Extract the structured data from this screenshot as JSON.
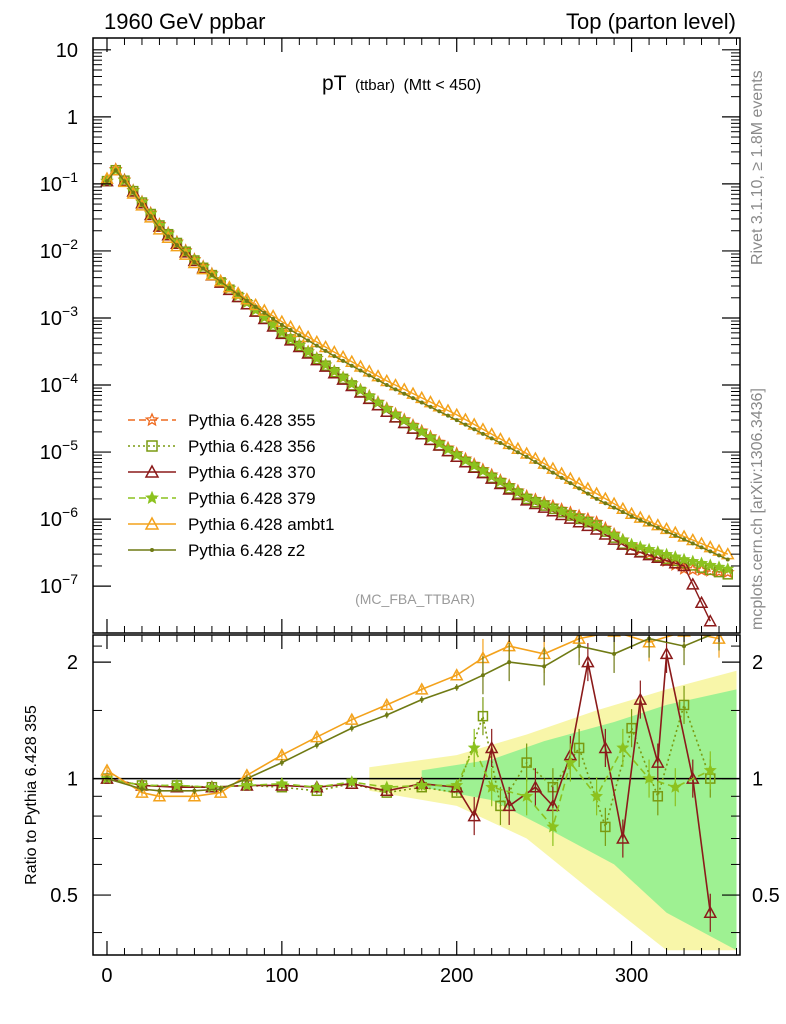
{
  "header": {
    "left": "1960 GeV ppbar",
    "right": "Top (parton level)"
  },
  "side_labels": {
    "rivet": "Rivet 3.1.10, ≥ 1.8M events",
    "mcplots": "mcplots.cern.ch [arXiv:1306.3436]"
  },
  "colors": {
    "c355": "#ee6a1f",
    "c356": "#7a9a10",
    "c370": "#8b1a1a",
    "c379": "#8cc21f",
    "ambt1": "#f3a21c",
    "z2": "#6f7a14",
    "band_yellow": "#f7f59a",
    "band_green": "#8ef08e"
  },
  "chart_data": [
    {
      "type": "line",
      "panel": "main",
      "title_main": "pT",
      "title_sub": "(ttbar)",
      "title_cut": "(Mtt < 450)",
      "analysis": "(MC_FBA_TTBAR)",
      "yscale": "log",
      "xlim": [
        -8,
        362
      ],
      "ylim": [
        2e-08,
        15
      ],
      "y_tick_labels": [
        {
          "label": "10",
          "value": 10
        },
        {
          "label": "1",
          "value": 1
        },
        {
          "base": "10",
          "exp": "−1",
          "value": 0.1
        },
        {
          "base": "10",
          "exp": "−2",
          "value": 0.01
        },
        {
          "base": "10",
          "exp": "−3",
          "value": 0.001
        },
        {
          "base": "10",
          "exp": "−4",
          "value": 0.0001
        },
        {
          "base": "10",
          "exp": "−5",
          "value": 1e-05
        },
        {
          "base": "10",
          "exp": "−6",
          "value": 1e-06
        },
        {
          "base": "10",
          "exp": "−7",
          "value": 1e-07
        }
      ],
      "series": [
        {
          "name": "Pythia 6.428 355",
          "style": "dashed",
          "marker": "star-open",
          "color_key": "c355",
          "points": [
            [
              0,
              0.11
            ],
            [
              5,
              0.165
            ],
            [
              15,
              0.08
            ],
            [
              30,
              0.025
            ],
            [
              50,
              0.0075
            ],
            [
              80,
              0.0017
            ],
            [
              100,
              0.00062
            ],
            [
              130,
              0.00016
            ],
            [
              160,
              4.5e-05
            ],
            [
              200,
              9.5e-06
            ],
            [
              240,
              2.2e-06
            ],
            [
              280,
              9e-07
            ],
            [
              300,
              4e-07
            ],
            [
              330,
              1.8e-07
            ],
            [
              355,
              1.6e-07
            ]
          ]
        },
        {
          "name": "Pythia 6.428 356",
          "style": "dotted",
          "marker": "square-open",
          "color_key": "c356",
          "points": [
            [
              0,
              0.11
            ],
            [
              5,
              0.16
            ],
            [
              15,
              0.078
            ],
            [
              30,
              0.024
            ],
            [
              50,
              0.0072
            ],
            [
              80,
              0.0016
            ],
            [
              100,
              0.0006
            ],
            [
              130,
              0.000155
            ],
            [
              160,
              4e-05
            ],
            [
              200,
              8.5e-06
            ],
            [
              240,
              2e-06
            ],
            [
              280,
              8e-07
            ],
            [
              300,
              3.5e-07
            ],
            [
              330,
              2.2e-07
            ],
            [
              355,
              1.5e-07
            ]
          ]
        },
        {
          "name": "Pythia 6.428 370",
          "style": "solid",
          "marker": "triangle-open",
          "color_key": "c370",
          "points": [
            [
              0,
              0.11
            ],
            [
              5,
              0.16
            ],
            [
              15,
              0.077
            ],
            [
              30,
              0.023
            ],
            [
              50,
              0.0071
            ],
            [
              80,
              0.0016
            ],
            [
              100,
              0.00058
            ],
            [
              130,
              0.00015
            ],
            [
              160,
              4e-05
            ],
            [
              200,
              8.5e-06
            ],
            [
              240,
              1.9e-06
            ],
            [
              280,
              7e-07
            ],
            [
              300,
              3.5e-07
            ],
            [
              330,
              2e-07
            ],
            [
              345,
              3e-08
            ]
          ]
        },
        {
          "name": "Pythia 6.428 379",
          "style": "dashed",
          "marker": "star-filled",
          "color_key": "c379",
          "points": [
            [
              0,
              0.11
            ],
            [
              5,
              0.16
            ],
            [
              15,
              0.079
            ],
            [
              30,
              0.024
            ],
            [
              50,
              0.0073
            ],
            [
              80,
              0.0017
            ],
            [
              100,
              0.00061
            ],
            [
              130,
              0.00016
            ],
            [
              160,
              4.4e-05
            ],
            [
              200,
              9e-06
            ],
            [
              240,
              2.1e-06
            ],
            [
              280,
              8e-07
            ],
            [
              300,
              4.2e-07
            ],
            [
              330,
              2.5e-07
            ],
            [
              355,
              1.8e-07
            ]
          ]
        },
        {
          "name": "Pythia 6.428 ambt1",
          "style": "solid",
          "marker": "triangle-open",
          "color_key": "ambt1",
          "points": [
            [
              0,
              0.12
            ],
            [
              5,
              0.16
            ],
            [
              15,
              0.072
            ],
            [
              30,
              0.021
            ],
            [
              50,
              0.0066
            ],
            [
              80,
              0.0019
            ],
            [
              100,
              0.00088
            ],
            [
              130,
              0.00031
            ],
            [
              160,
              0.000115
            ],
            [
              200,
              3.6e-05
            ],
            [
              240,
              9.5e-06
            ],
            [
              280,
              2.4e-06
            ],
            [
              300,
              1.2e-06
            ],
            [
              330,
              5.5e-07
            ],
            [
              355,
              3e-07
            ]
          ]
        },
        {
          "name": "Pythia 6.428 z2",
          "style": "solid",
          "marker": "dot",
          "color_key": "z2",
          "points": [
            [
              0,
              0.11
            ],
            [
              5,
              0.16
            ],
            [
              15,
              0.074
            ],
            [
              30,
              0.022
            ],
            [
              50,
              0.0068
            ],
            [
              80,
              0.0018
            ],
            [
              100,
              0.00079
            ],
            [
              130,
              0.00027
            ],
            [
              160,
              0.0001
            ],
            [
              200,
              3e-05
            ],
            [
              240,
              8.5e-06
            ],
            [
              280,
              2e-06
            ],
            [
              300,
              1.1e-06
            ],
            [
              330,
              5e-07
            ],
            [
              355,
              2.5e-07
            ]
          ]
        }
      ]
    },
    {
      "type": "line",
      "panel": "ratio",
      "ylabel": "Ratio to Pythia 6.428 355",
      "yscale": "log",
      "xlim": [
        -8,
        362
      ],
      "ylim": [
        0.35,
        2.35
      ],
      "x_ticks": [
        0,
        100,
        200,
        300
      ],
      "y_ticks": [
        0.5,
        1,
        2
      ],
      "reference": 1,
      "bands": [
        {
          "color_key": "band_yellow",
          "points": [
            [
              150,
              0.07
            ],
            [
              200,
              0.15
            ],
            [
              240,
              0.3
            ],
            [
              280,
              0.5
            ],
            [
              320,
              0.7
            ],
            [
              360,
              0.9
            ]
          ]
        },
        {
          "color_key": "band_green",
          "points": [
            [
              180,
              0.05
            ],
            [
              220,
              0.12
            ],
            [
              250,
              0.25
            ],
            [
              290,
              0.4
            ],
            [
              320,
              0.55
            ],
            [
              360,
              0.7
            ]
          ]
        }
      ],
      "series": [
        {
          "name": "Pythia 6.428 356",
          "style": "dotted",
          "marker": "square-open",
          "color_key": "c356",
          "points": [
            [
              0,
              1.0
            ],
            [
              20,
              0.96
            ],
            [
              40,
              0.96
            ],
            [
              60,
              0.95
            ],
            [
              80,
              0.96
            ],
            [
              100,
              0.95
            ],
            [
              120,
              0.93
            ],
            [
              140,
              0.97
            ],
            [
              160,
              0.92
            ],
            [
              180,
              0.95
            ],
            [
              200,
              0.92
            ],
            [
              215,
              1.45
            ],
            [
              225,
              0.85
            ],
            [
              240,
              1.1
            ],
            [
              255,
              0.95
            ],
            [
              270,
              1.2
            ],
            [
              285,
              0.75
            ],
            [
              300,
              1.35
            ],
            [
              315,
              0.9
            ],
            [
              330,
              1.55
            ],
            [
              345,
              1.0
            ]
          ]
        },
        {
          "name": "Pythia 6.428 370",
          "style": "solid",
          "marker": "triangle-open",
          "color_key": "c370",
          "points": [
            [
              0,
              1.0
            ],
            [
              20,
              0.96
            ],
            [
              40,
              0.95
            ],
            [
              60,
              0.95
            ],
            [
              80,
              0.96
            ],
            [
              100,
              0.96
            ],
            [
              120,
              0.95
            ],
            [
              140,
              0.97
            ],
            [
              160,
              0.93
            ],
            [
              180,
              0.97
            ],
            [
              200,
              0.95
            ],
            [
              210,
              0.8
            ],
            [
              220,
              1.2
            ],
            [
              230,
              0.85
            ],
            [
              245,
              0.95
            ],
            [
              255,
              0.85
            ],
            [
              265,
              1.15
            ],
            [
              275,
              2.0
            ],
            [
              285,
              1.2
            ],
            [
              295,
              0.7
            ],
            [
              305,
              1.6
            ],
            [
              315,
              1.1
            ],
            [
              320,
              2.1
            ],
            [
              335,
              1.0
            ],
            [
              345,
              0.45
            ]
          ]
        },
        {
          "name": "Pythia 6.428 379",
          "style": "dashed",
          "marker": "star-filled",
          "color_key": "c379",
          "points": [
            [
              0,
              1.0
            ],
            [
              20,
              0.96
            ],
            [
              40,
              0.96
            ],
            [
              60,
              0.95
            ],
            [
              80,
              0.96
            ],
            [
              100,
              0.97
            ],
            [
              120,
              0.95
            ],
            [
              140,
              0.98
            ],
            [
              160,
              0.95
            ],
            [
              180,
              0.96
            ],
            [
              200,
              0.96
            ],
            [
              210,
              1.2
            ],
            [
              220,
              0.95
            ],
            [
              240,
              0.9
            ],
            [
              255,
              0.75
            ],
            [
              265,
              1.1
            ],
            [
              280,
              0.9
            ],
            [
              295,
              1.2
            ],
            [
              310,
              1.0
            ],
            [
              325,
              0.95
            ],
            [
              345,
              1.05
            ]
          ]
        },
        {
          "name": "Pythia 6.428 ambt1",
          "style": "solid",
          "marker": "triangle-open",
          "color_key": "ambt1",
          "points": [
            [
              0,
              1.05
            ],
            [
              20,
              0.92
            ],
            [
              30,
              0.9
            ],
            [
              50,
              0.9
            ],
            [
              65,
              0.92
            ],
            [
              80,
              1.02
            ],
            [
              100,
              1.15
            ],
            [
              120,
              1.28
            ],
            [
              140,
              1.42
            ],
            [
              160,
              1.55
            ],
            [
              180,
              1.7
            ],
            [
              200,
              1.85
            ],
            [
              215,
              2.05
            ],
            [
              230,
              2.2
            ],
            [
              250,
              2.1
            ],
            [
              270,
              2.3
            ],
            [
              290,
              2.4
            ],
            [
              310,
              2.25
            ],
            [
              330,
              2.4
            ],
            [
              350,
              2.3
            ]
          ]
        },
        {
          "name": "Pythia 6.428 z2",
          "style": "solid",
          "marker": "dot",
          "color_key": "z2",
          "points": [
            [
              0,
              1.0
            ],
            [
              20,
              0.94
            ],
            [
              30,
              0.93
            ],
            [
              50,
              0.93
            ],
            [
              65,
              0.94
            ],
            [
              80,
              1.0
            ],
            [
              100,
              1.1
            ],
            [
              120,
              1.22
            ],
            [
              140,
              1.35
            ],
            [
              160,
              1.46
            ],
            [
              180,
              1.6
            ],
            [
              200,
              1.72
            ],
            [
              215,
              1.85
            ],
            [
              230,
              2.0
            ],
            [
              250,
              1.95
            ],
            [
              270,
              2.2
            ],
            [
              290,
              2.1
            ],
            [
              310,
              2.3
            ],
            [
              330,
              2.2
            ],
            [
              350,
              2.4
            ]
          ]
        }
      ]
    }
  ]
}
